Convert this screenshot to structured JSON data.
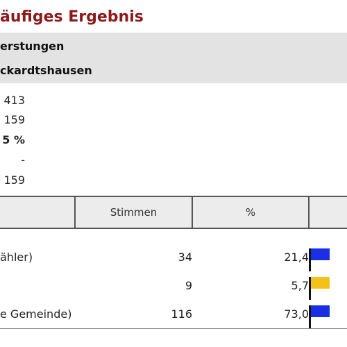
{
  "page": {
    "title": "äufiges Ergebnis"
  },
  "info": {
    "line1": "erstungen",
    "line2": "ckardtshausen"
  },
  "stats": [
    {
      "value": "413",
      "bold": false
    },
    {
      "value": "159",
      "bold": false
    },
    {
      "value": "5 %",
      "bold": true
    },
    {
      "value": "-",
      "bold": false
    },
    {
      "value": "159",
      "bold": false
    }
  ],
  "table": {
    "headers": {
      "party": "",
      "votes": "Stimmen",
      "percent": "%",
      "bar": ""
    },
    "rows": [
      {
        "party": "ähler)",
        "votes": "34",
        "percent": "21,4",
        "color": "#1a2ee6",
        "stripe": "#1a2ee6"
      },
      {
        "party": "",
        "votes": "9",
        "percent": "5,7",
        "color": "#f2c21a",
        "stripe": "#f2c21a"
      },
      {
        "party": "e Gemeinde)",
        "votes": "116",
        "percent": "73,0",
        "color": "#1a2ee6",
        "stripe": "#1a2ee6"
      }
    ]
  }
}
